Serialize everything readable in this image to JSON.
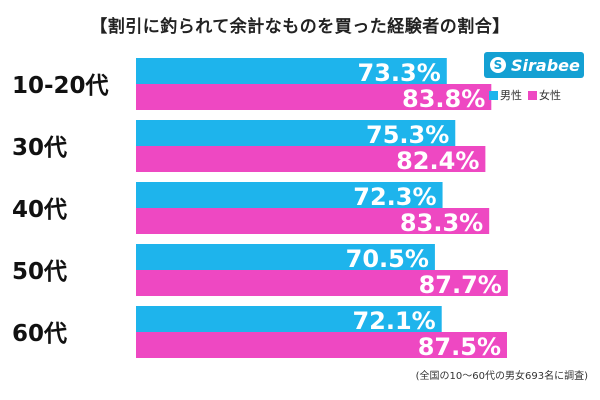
{
  "chart_data": {
    "type": "bar",
    "orientation": "horizontal",
    "title": "【割引に釣られて余計なものを買った経験者の割合】",
    "categories": [
      "10-20代",
      "30代",
      "40代",
      "50代",
      "60代"
    ],
    "series": [
      {
        "name": "男性",
        "color": "#1eb4ec",
        "values": [
          73.3,
          75.3,
          72.3,
          70.5,
          72.1
        ],
        "labels": [
          "73.3%",
          "75.3%",
          "72.3%",
          "70.5%",
          "72.1%"
        ]
      },
      {
        "name": "女性",
        "color": "#ee48c2",
        "values": [
          83.8,
          82.4,
          83.3,
          87.7,
          87.5
        ],
        "labels": [
          "83.8%",
          "82.4%",
          "83.3%",
          "87.7%",
          "87.5%"
        ]
      }
    ],
    "xlim": [
      0,
      100
    ],
    "legend_position": "top-right",
    "grid": false
  },
  "logo": {
    "text": "Sirabee",
    "mark": "S",
    "color": "#14a0d3"
  },
  "footnote": "(全国の10〜60代の男女693名に調査)"
}
